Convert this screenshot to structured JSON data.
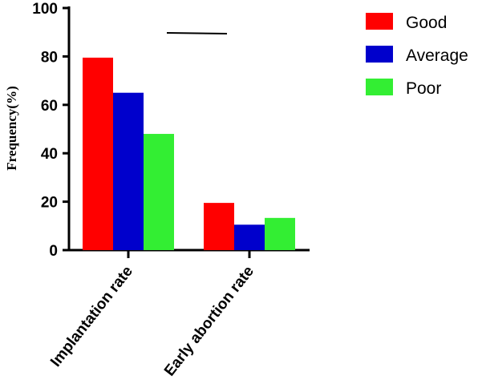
{
  "chart_data": {
    "type": "bar",
    "categories": [
      "Implantation rate",
      "Early abortion rate"
    ],
    "series": [
      {
        "name": "Good",
        "values": [
          79.5,
          19.5
        ],
        "color": "#ff0000"
      },
      {
        "name": "Average",
        "values": [
          65,
          10.5
        ],
        "color": "#0000cc"
      },
      {
        "name": "Poor",
        "values": [
          48,
          13.3
        ],
        "color": "#33ee33"
      }
    ],
    "xlabel": "",
    "ylabel": "Frequency(%)",
    "ylim": [
      0,
      100
    ],
    "yticks": [
      "0",
      "20",
      "40",
      "60",
      "80",
      "100"
    ],
    "legend": "right",
    "grid": false
  }
}
